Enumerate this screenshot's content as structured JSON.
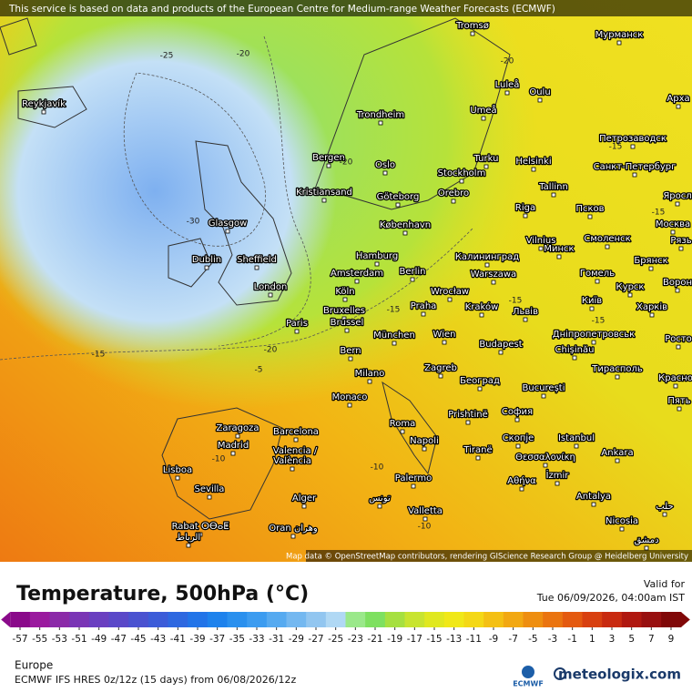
{
  "header": {
    "notice": "This service is based on data and products of the European Centre for Medium-range Weather Forecasts (ECMWF)"
  },
  "map": {
    "cities": [
      "Reykjavík",
      "Tromsø",
      "Мурманск",
      "Luleå",
      "Oulu",
      "Арха",
      "Trondheim",
      "Umeå",
      "Петрозаводск",
      "Bergen",
      "Turku",
      "Helsinki",
      "Санкт-Петербург",
      "Oslo",
      "Stockholm",
      "Kristiansand",
      "Göteborg",
      "Orebro",
      "Tallinn",
      "Псков",
      "Яросл",
      "Riga",
      "Москва",
      "Glasgow",
      "København",
      "Vilnius",
      "Минск",
      "Смоленск",
      "Рязь",
      "Dublin",
      "Sheffield",
      "Hamburg",
      "Калининград",
      "Брянск",
      "Amsterdam",
      "Berlin",
      "Гомель",
      "Ворон",
      "London",
      "Köln",
      "Warszawa",
      "Wrocław",
      "Курск",
      "Київ",
      "Харків",
      "Bruxelles",
      "Brussel",
      "Praha",
      "Kraków",
      "Львів",
      "Paris",
      "München",
      "Wien",
      "Дніпропетровськ",
      "Росто",
      "Chișinău",
      "Bern",
      "Budapest",
      "Тирасполь",
      "Красно",
      "Milano",
      "Zagreb",
      "Београд",
      "București",
      "Пять",
      "Monaco",
      "Prishtinë",
      "София",
      "Roma",
      "Zaragoza",
      "Barcelona",
      "Istanbul",
      "Скопје",
      "Madrid",
      "Napoli",
      "Tiranë",
      "Θεσσαλονίκη",
      "Ankara",
      "Valencia /",
      "València",
      "Lisboa",
      "İzmir",
      "Αθήνα",
      "Palermo",
      "Sevilla",
      "Alger",
      "تونس",
      "Antalya",
      "حلب",
      "Valletta",
      "Nicosia",
      "Rabat ⵔⴱⴰⵟ",
      "الرباط",
      "Oran وهران",
      "دمشق"
    ],
    "contour_labels": [
      -25,
      -20,
      -20,
      -30,
      -15,
      -15,
      -15,
      -15,
      -15,
      -20,
      -20,
      -10,
      -10,
      -10,
      -15,
      -5
    ],
    "attribution": "Map data © OpenStreetMap contributors, rendering GIScience Research Group @ Heidelberg University"
  },
  "legend": {
    "title": "Temperature, 500hPa (°C)",
    "valid_label": "Valid for",
    "valid_time": "Tue 06/09/2026, 04:00am IST",
    "ticks": [
      -57,
      -55,
      -53,
      -51,
      -49,
      -47,
      -45,
      -43,
      -41,
      -39,
      -37,
      -35,
      -33,
      -31,
      -29,
      -27,
      -25,
      -23,
      -21,
      -19,
      -17,
      -15,
      -13,
      -11,
      -9,
      -7,
      -5,
      -3,
      -1,
      1,
      3,
      5,
      7,
      9
    ],
    "colors": [
      "#8a0a8a",
      "#9a1a9e",
      "#8b2aa8",
      "#7a35b5",
      "#6a3fc0",
      "#5a48c8",
      "#4a52d0",
      "#3c5cd8",
      "#2e68e0",
      "#2274e8",
      "#1e82ec",
      "#2a90ee",
      "#3c9cf0",
      "#56aaf0",
      "#74b8f0",
      "#92c6f0",
      "#b0d8f4",
      "#9ae88a",
      "#7ee060",
      "#a6e040",
      "#c8e430",
      "#e0e820",
      "#f0e818",
      "#f4d816",
      "#f4c014",
      "#f2a812",
      "#ee8e10",
      "#ea7410",
      "#e45a10",
      "#d84010",
      "#c82a10",
      "#b01810",
      "#981010",
      "#800808"
    ]
  },
  "footer": {
    "region": "Europe",
    "model": "ECMWF IFS HRES 0z/12z (15 days) from  06/08/2026/12z",
    "ecmwf_logo": "ECMWF",
    "brand": "meteologix.com"
  }
}
